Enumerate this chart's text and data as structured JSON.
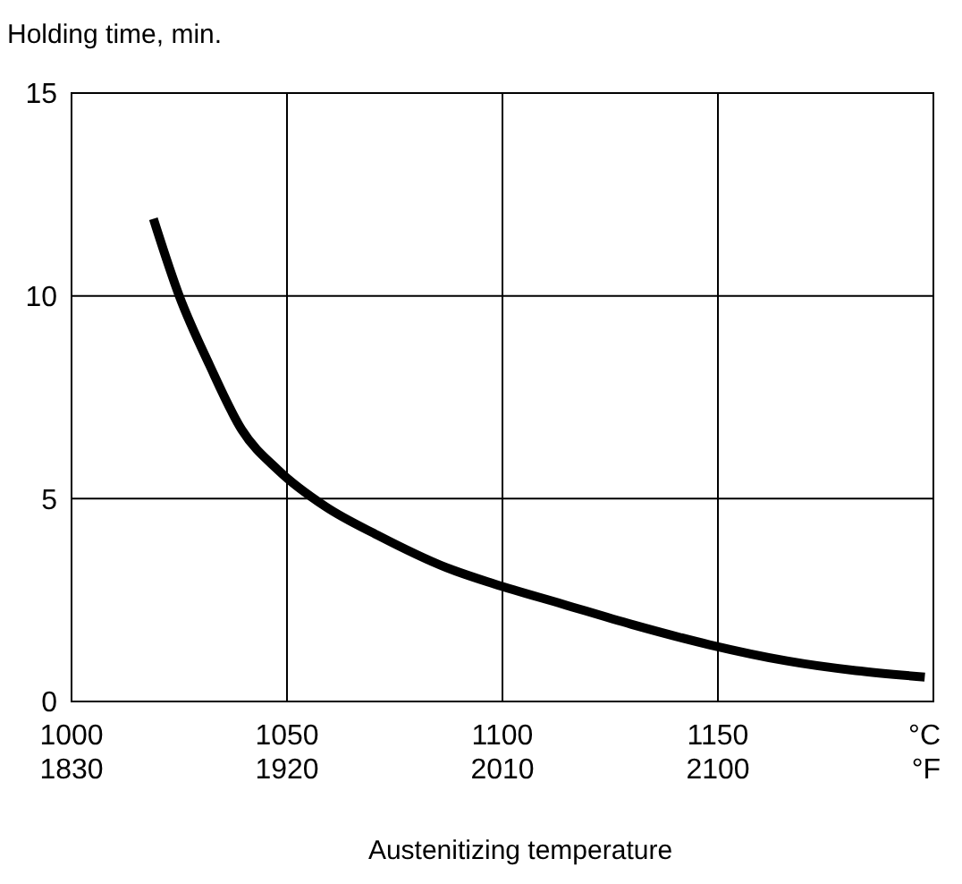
{
  "chart_data": {
    "type": "line",
    "ylabel": "Holding time, min.",
    "xlabel": "Austenitizing temperature",
    "x": [
      1019,
      1025,
      1032,
      1039.5,
      1048,
      1059,
      1071,
      1087,
      1098,
      1114,
      1130,
      1148,
      1166,
      1198
    ],
    "series": [
      {
        "color": "#000000",
        "values": [
          11.9,
          10.0,
          8.3,
          6.7,
          5.7,
          4.8,
          4.1,
          3.3,
          2.9,
          2.4,
          1.9,
          1.4,
          1.0,
          0.6
        ]
      }
    ],
    "xlim": [
      1000,
      1200
    ],
    "xticks": [
      1000,
      1050,
      1100,
      1150,
      {
        "value": 1200,
        "label": "°C"
      }
    ],
    "x2lim": [
      1830,
      2190
    ],
    "x2ticks": [
      1830,
      1920,
      2010,
      2100,
      {
        "value": 2190,
        "label": "°F"
      }
    ],
    "ylim": [
      0,
      15
    ],
    "yticks": [
      0,
      5,
      10,
      15
    ],
    "grid": true,
    "marker": "none",
    "line_style": "solid"
  }
}
